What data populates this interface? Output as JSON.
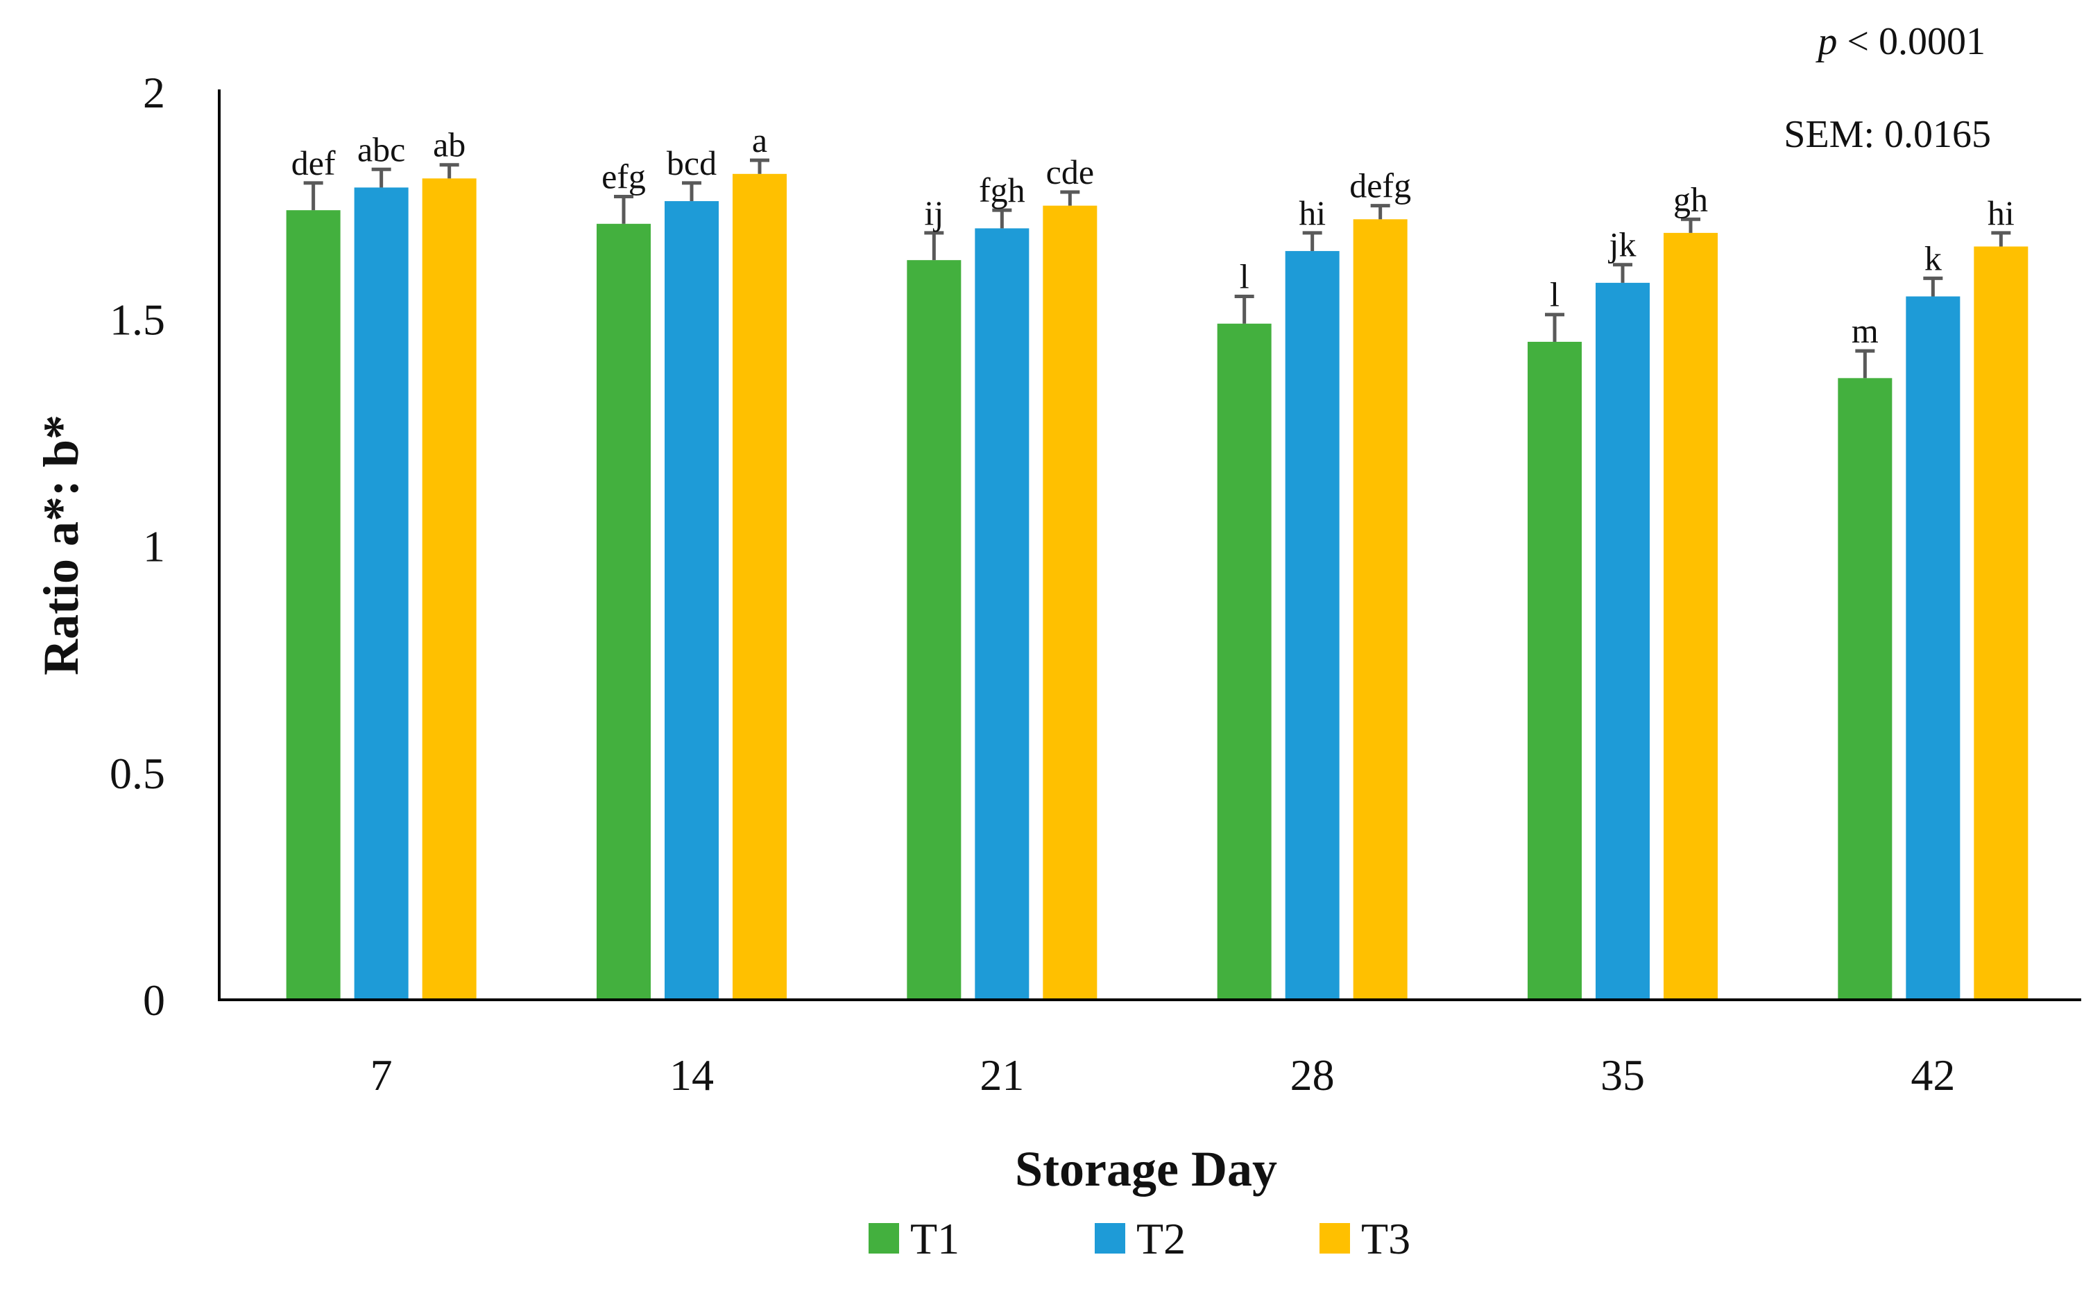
{
  "chart_data": {
    "type": "bar",
    "xlabel": "Storage Day",
    "ylabel": "Ratio a*: b*",
    "ylim": [
      0,
      2
    ],
    "yticks": [
      "0",
      "0.5",
      "1",
      "1.5",
      "2"
    ],
    "categories": [
      "7",
      "14",
      "21",
      "28",
      "35",
      "42"
    ],
    "series": [
      {
        "name": "T1",
        "color": "#43B03E",
        "values": [
          1.74,
          1.71,
          1.63,
          1.49,
          1.45,
          1.37
        ],
        "errors": [
          0.06,
          0.06,
          0.06,
          0.06,
          0.06,
          0.06
        ],
        "labels": [
          "def",
          "efg",
          "ij",
          "l",
          "l",
          "m"
        ]
      },
      {
        "name": "T2",
        "color": "#1E9BD7",
        "values": [
          1.79,
          1.76,
          1.7,
          1.65,
          1.58,
          1.55
        ],
        "errors": [
          0.04,
          0.04,
          0.04,
          0.04,
          0.04,
          0.04
        ],
        "labels": [
          "abc",
          "bcd",
          "fgh",
          "hi",
          "jk",
          "k"
        ]
      },
      {
        "name": "T3",
        "color": "#FFC000",
        "values": [
          1.81,
          1.82,
          1.75,
          1.72,
          1.69,
          1.66
        ],
        "errors": [
          0.03,
          0.03,
          0.03,
          0.03,
          0.03,
          0.03
        ],
        "labels": [
          "ab",
          "a",
          "cde",
          "defg",
          "gh",
          "hi"
        ]
      }
    ],
    "annotations": {
      "p_prefix": "p",
      "p_value": " < 0.0001",
      "sem": "SEM: 0.0165"
    },
    "legend": "bottom-center",
    "grid": false
  }
}
